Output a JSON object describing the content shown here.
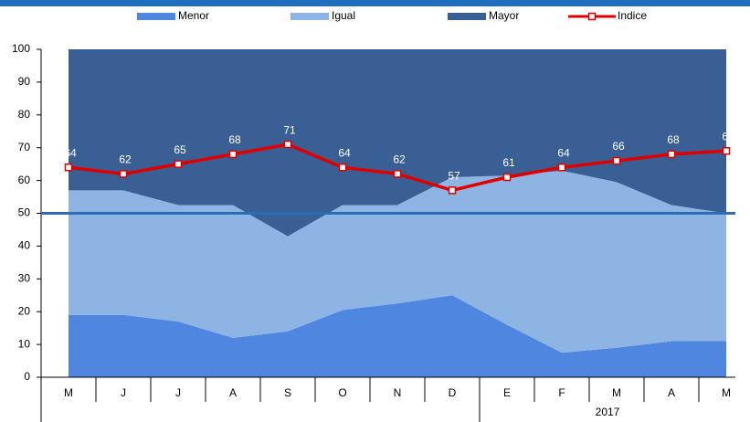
{
  "chart_data": {
    "type": "stacked-area-line",
    "categories": [
      "M",
      "J",
      "J",
      "A",
      "S",
      "O",
      "N",
      "D",
      "E",
      "F",
      "M",
      "A",
      "M"
    ],
    "year_label": "2017",
    "series": [
      {
        "name": "Menor",
        "color": "#4f86e0",
        "values": [
          19,
          19,
          17,
          12,
          14,
          20.5,
          22.5,
          25,
          16,
          7.5,
          9,
          11,
          11
        ]
      },
      {
        "name": "Igual",
        "color": "#8db4e3",
        "values": [
          38,
          38,
          35.5,
          40.5,
          29,
          32,
          30,
          36,
          45.5,
          55.5,
          50.5,
          41.5,
          39
        ]
      },
      {
        "name": "Mayor",
        "color": "#3a5f94",
        "values": [
          43,
          43,
          47.5,
          47.5,
          57,
          47.5,
          47.5,
          39,
          38.5,
          37,
          40.5,
          47.5,
          50
        ]
      }
    ],
    "line_series": {
      "name": "Indice",
      "color": "#e00000",
      "values": [
        64,
        62,
        65,
        68,
        71,
        64,
        62,
        57,
        61,
        64,
        66,
        68,
        69
      ]
    },
    "reference_line": 50,
    "ylim": [
      0,
      100
    ],
    "yticks": [
      0,
      10,
      20,
      30,
      40,
      50,
      60,
      70,
      80,
      90,
      100
    ]
  }
}
